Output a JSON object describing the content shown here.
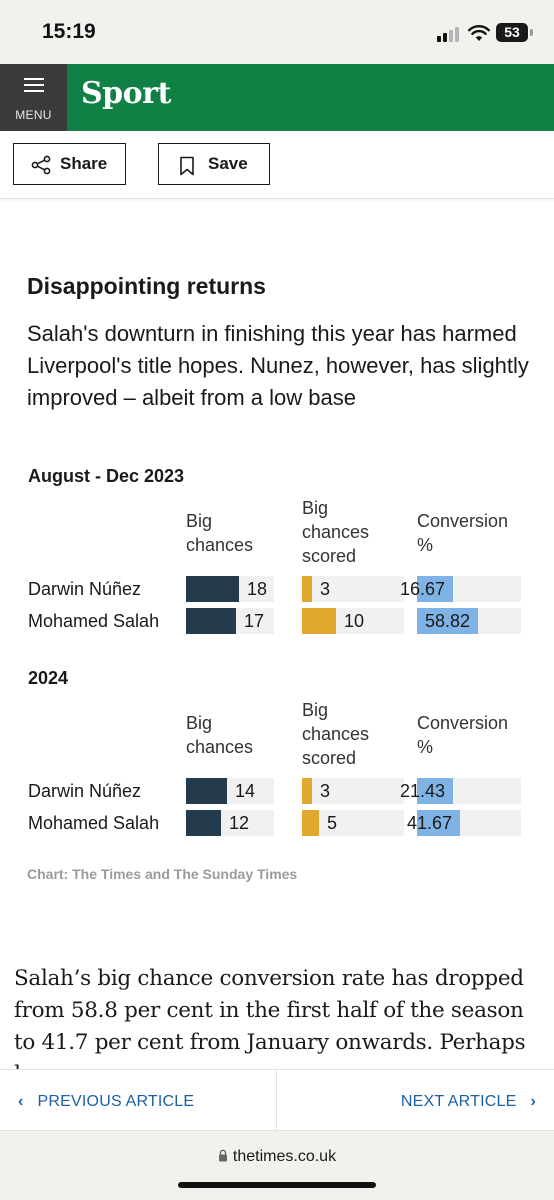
{
  "status_bar": {
    "time": "15:19",
    "battery": "53"
  },
  "header": {
    "menu_label": "MENU",
    "section": "Sport"
  },
  "toolbar": {
    "share_label": "Share",
    "save_label": "Save"
  },
  "graphic": {
    "title": "Disappointing returns",
    "subtitle": "Salah's downturn in finishing this year has harmed Liverpool's title hopes. Nunez, however, has slightly improved – albeit from a low base",
    "columns": {
      "big_chances": [
        "Big",
        "chances"
      ],
      "scored": [
        "Big",
        "chances",
        "scored"
      ],
      "conversion": [
        "Conversion",
        "%"
      ]
    },
    "colors": {
      "big_chances": "#243a4d",
      "scored": "#e0a82e",
      "conversion": "#7fb2e5"
    },
    "credit": "Chart: The Times and The Sunday Times"
  },
  "chart_data": [
    {
      "type": "bar",
      "title": "August - Dec 2023",
      "categories": [
        "Darwin Núñez",
        "Mohamed Salah"
      ],
      "series": [
        {
          "name": "Big chances",
          "values": [
            "18",
            "17"
          ]
        },
        {
          "name": "Big chances scored",
          "values": [
            "3",
            "10"
          ]
        },
        {
          "name": "Conversion %",
          "values": [
            "16.67",
            "58.82"
          ]
        }
      ]
    },
    {
      "type": "bar",
      "title": "2024",
      "categories": [
        "Darwin Núñez",
        "Mohamed Salah"
      ],
      "series": [
        {
          "name": "Big chances",
          "values": [
            "14",
            "12"
          ]
        },
        {
          "name": "Big chances scored",
          "values": [
            "3",
            "5"
          ]
        },
        {
          "name": "Conversion %",
          "values": [
            "21.43",
            "41.67"
          ]
        }
      ]
    }
  ],
  "article": {
    "paragraph": "Salah’s big chance conversion rate has dropped from 58.8 per cent in the first half of the season to 41.7 per cent from January onwards. Perhaps he"
  },
  "article_nav": {
    "prev": "PREVIOUS ARTICLE",
    "next": "NEXT ARTICLE"
  },
  "browser": {
    "url": "thetimes.co.uk"
  }
}
